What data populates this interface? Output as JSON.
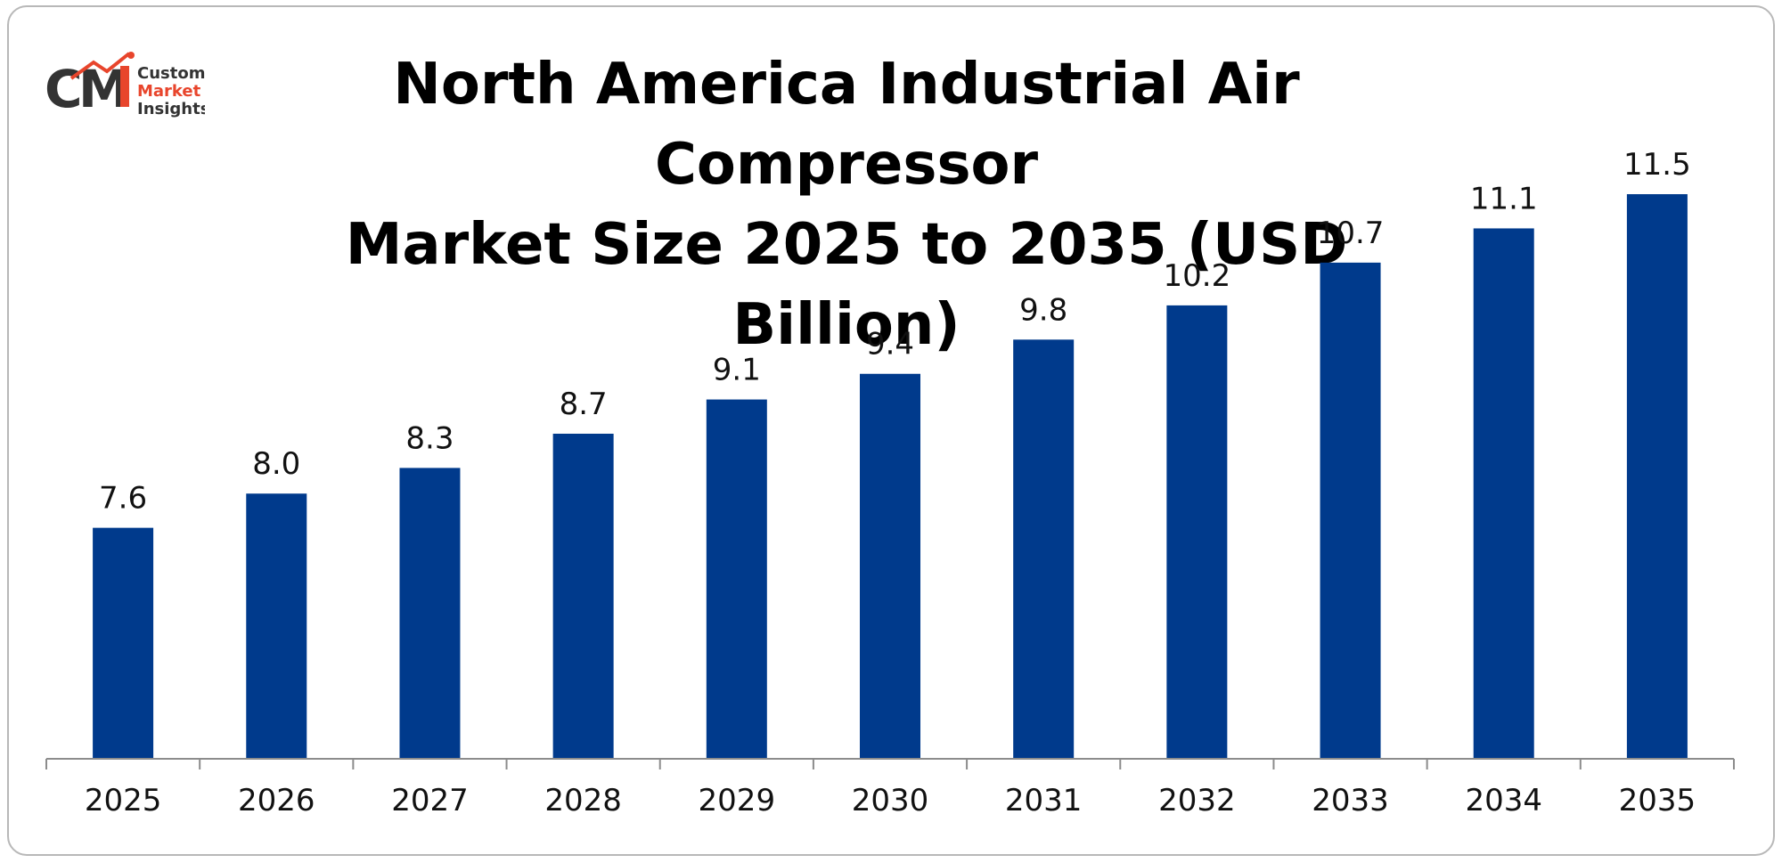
{
  "chart_data": {
    "type": "bar",
    "title_lines": [
      "North America Industrial Air Compressor",
      "Market Size 2025 to 2035 (USD Billion)"
    ],
    "categories": [
      "2025",
      "2026",
      "2027",
      "2028",
      "2029",
      "2030",
      "2031",
      "2032",
      "2033",
      "2034",
      "2035"
    ],
    "values": [
      7.6,
      8.0,
      8.3,
      8.7,
      9.1,
      9.4,
      9.8,
      10.2,
      10.7,
      11.1,
      11.5
    ],
    "value_labels": [
      "7.6",
      "8.0",
      "8.3",
      "8.7",
      "9.1",
      "9.4",
      "9.8",
      "10.2",
      "10.7",
      "11.1",
      "11.5"
    ],
    "xlabel": "",
    "ylabel": "",
    "ylim": [
      4.9,
      12.0
    ],
    "grid": false,
    "legend": "none",
    "bar_color": "#003a8c"
  },
  "logo": {
    "line1": "Custom",
    "line2": "Market",
    "line3": "Insights",
    "dark_color": "#333333",
    "accent_color": "#e8452c"
  }
}
